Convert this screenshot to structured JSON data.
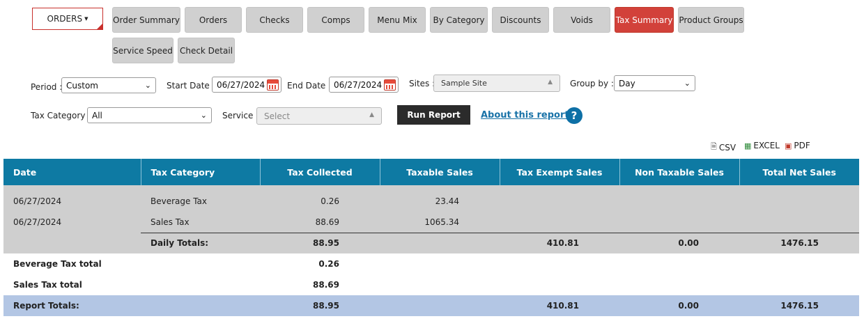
{
  "nav": {
    "dropdown_label": "ORDERS",
    "buttons": [
      {
        "label": "Order Summary",
        "active": false
      },
      {
        "label": "Orders",
        "active": false
      },
      {
        "label": "Checks",
        "active": false
      },
      {
        "label": "Comps",
        "active": false
      },
      {
        "label": "Menu Mix",
        "active": false
      },
      {
        "label": "By Category",
        "active": false
      },
      {
        "label": "Discounts",
        "active": false
      },
      {
        "label": "Voids",
        "active": false
      },
      {
        "label": "Tax Summary",
        "active": true
      },
      {
        "label": "Product Groups",
        "active": false
      },
      {
        "label": "Service Speed",
        "active": false
      },
      {
        "label": "Check Detail",
        "active": false
      }
    ]
  },
  "filters": {
    "period_label": "Period :",
    "period_value": "Custom",
    "start_label": "Start Date :",
    "start_value": "06/27/2024",
    "end_label": "End Date :",
    "end_value": "06/27/2024",
    "sites_label": "Sites :",
    "sites_value": "Sample Site",
    "groupby_label": "Group by :",
    "groupby_value": "Day",
    "taxcat_label": "Tax Category :",
    "taxcat_value": "All",
    "service_label": "Service :",
    "service_placeholder": "Select",
    "run_label": "Run Report",
    "about_label": "About this report",
    "help_label": "?"
  },
  "export": {
    "csv": "CSV",
    "excel": "EXCEL",
    "pdf": "PDF"
  },
  "table": {
    "headers": [
      "Date",
      "Tax Category",
      "Tax Collected",
      "Taxable Sales",
      "Tax Exempt Sales",
      "Non Taxable Sales",
      "Total Net Sales"
    ],
    "rows": [
      {
        "date": "06/27/2024",
        "category": "Beverage Tax",
        "collected": "0.26",
        "taxable": "23.44",
        "exempt": "",
        "nontaxable": "",
        "net": ""
      },
      {
        "date": "06/27/2024",
        "category": "Sales Tax",
        "collected": "88.69",
        "taxable": "1065.34",
        "exempt": "",
        "nontaxable": "",
        "net": ""
      }
    ],
    "daily_totals": {
      "label": "Daily Totals:",
      "collected": "88.95",
      "taxable": "",
      "exempt": "410.81",
      "nontaxable": "0.00",
      "net": "1476.15"
    },
    "category_totals": [
      {
        "label": "Beverage Tax total",
        "collected": "0.26"
      },
      {
        "label": "Sales Tax total",
        "collected": "88.69"
      }
    ],
    "report_totals": {
      "label": "Report Totals:",
      "collected": "88.95",
      "taxable": "",
      "exempt": "410.81",
      "nontaxable": "0.00",
      "net": "1476.15"
    }
  },
  "colors": {
    "accent": "#d2413a",
    "header_blue": "#0e7aa3",
    "report_total_row": "#b3c6e4",
    "gray_row": "#cfcfcf"
  }
}
